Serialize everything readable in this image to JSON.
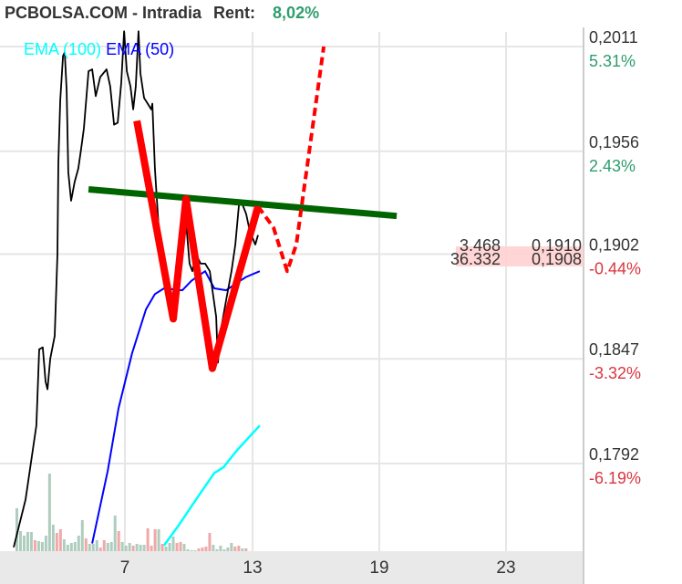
{
  "header": {
    "site": "PCBOLSA.COM - Intradia",
    "rent_label": "Rent:",
    "rent_value": "8,02%"
  },
  "legend": [
    {
      "name": "EMA (100)",
      "color": "#00ffff"
    },
    {
      "name": "EMA (50)",
      "color": "#0000ff"
    }
  ],
  "colors": {
    "price": "#000000",
    "ema100": "#00ffff",
    "ema50": "#0000ff",
    "pattern": "#ff0000",
    "trendline": "#006400",
    "vol_up": "#aecdbf",
    "vol_down": "#f0a8a8",
    "pct_up": "#2e9e6e",
    "pct_down": "#d9363e",
    "axis_band": "#e9e9e9"
  },
  "chart_data": {
    "type": "line",
    "title": "",
    "x_ticks": [
      7,
      13,
      19,
      23
    ],
    "ylim": [
      0.1748,
      0.2024
    ],
    "y_ticks": [
      {
        "price": "0,2011",
        "value": 0.2011,
        "pct": "5.31%",
        "dir": "up"
      },
      {
        "price": "0,1956",
        "value": 0.1956,
        "pct": "2.43%",
        "dir": "up"
      },
      {
        "price": "0,1902",
        "value": 0.1902,
        "pct": "-0.44%",
        "dir": "down"
      },
      {
        "price": "0,1847",
        "value": 0.1847,
        "pct": "-3.32%",
        "dir": "down"
      },
      {
        "price": "0,1792",
        "value": 0.1792,
        "pct": "-6.19%",
        "dir": "down"
      }
    ],
    "grid": true,
    "price": {
      "x": [
        1.77,
        2.33,
        2.84,
        2.97,
        3.14,
        3.27,
        3.36,
        3.49,
        3.7,
        3.83,
        3.87,
        3.96,
        4.09,
        4.17,
        4.26,
        4.34,
        4.47,
        4.64,
        4.81,
        4.94,
        5.07,
        5.29,
        5.46,
        5.63,
        5.84,
        6.14,
        6.31,
        6.49,
        6.66,
        6.83,
        6.96,
        7.09,
        7.26,
        7.39,
        7.51,
        7.64,
        7.73,
        7.9,
        8.07,
        8.24,
        8.29,
        8.41,
        8.5,
        8.67,
        8.93,
        9.23,
        9.36,
        9.61,
        9.87,
        10.04,
        10.17,
        10.34,
        10.56,
        10.77,
        10.99,
        11.29,
        11.37,
        11.54,
        11.76,
        12.01,
        12.19,
        12.36,
        12.53,
        12.7,
        12.87,
        13.13,
        13.26
      ],
      "y": [
        0.1748,
        0.1773,
        0.1812,
        0.1852,
        0.1853,
        0.1835,
        0.1831,
        0.1847,
        0.1859,
        0.1902,
        0.195,
        0.1983,
        0.2006,
        0.2008,
        0.1988,
        0.1945,
        0.193,
        0.194,
        0.1947,
        0.1957,
        0.1968,
        0.1998,
        0.1999,
        0.1985,
        0.1995,
        0.1999,
        0.199,
        0.197,
        0.1971,
        0.1992,
        0.2019,
        0.1998,
        0.199,
        0.1978,
        0.199,
        0.2019,
        0.1997,
        0.1984,
        0.1981,
        0.1978,
        0.1981,
        0.1947,
        0.1931,
        0.1902,
        0.1885,
        0.1869,
        0.1883,
        0.1893,
        0.1919,
        0.1897,
        0.1893,
        0.1902,
        0.1897,
        0.1897,
        0.1893,
        0.1869,
        0.1845,
        0.1864,
        0.1878,
        0.1893,
        0.1907,
        0.1928,
        0.1928,
        0.1923,
        0.1914,
        0.1907,
        0.1912
      ]
    },
    "ema50": {
      "x": [
        5.46,
        6.19,
        6.7,
        7.34,
        7.99,
        8.41,
        8.84,
        9.7,
        10.13,
        10.77,
        11.2,
        11.76,
        12.27,
        12.7,
        13.34
      ],
      "y": [
        0.175,
        0.1788,
        0.1821,
        0.185,
        0.1873,
        0.1881,
        0.1884,
        0.1883,
        0.1888,
        0.1893,
        0.1884,
        0.1883,
        0.1887,
        0.189,
        0.1893
      ]
    },
    "ema100": {
      "x": [
        8.84,
        9.49,
        10.34,
        11.2,
        11.63,
        12.27,
        13.34
      ],
      "y": [
        0.1749,
        0.1759,
        0.1773,
        0.1787,
        0.179,
        0.1799,
        0.1812
      ]
    },
    "pattern_solid": {
      "x": [
        7.56,
        9.27,
        9.87,
        11.11,
        13.26
      ],
      "y": [
        0.1972,
        0.1868,
        0.1931,
        0.1842,
        0.1927
      ]
    },
    "pattern_dashed": {
      "x": [
        13.26,
        13.99,
        14.64,
        15.07,
        16.37
      ],
      "y": [
        0.1927,
        0.1916,
        0.1893,
        0.1907,
        0.2011
      ]
    },
    "trendline": {
      "x": [
        5.29,
        19.55
      ],
      "y": [
        0.1936,
        0.1922
      ]
    },
    "volume": {
      "x_start": 1.92,
      "x_step": 0.171,
      "values": [
        47,
        22,
        17,
        21,
        21,
        12,
        11,
        10,
        17,
        85,
        29,
        20,
        24,
        13,
        7,
        9,
        10,
        17,
        34,
        14,
        8,
        8,
        12,
        4,
        12,
        9,
        10,
        39,
        22,
        10,
        6,
        9,
        6,
        8,
        7,
        7,
        25,
        6,
        24,
        24,
        8,
        5,
        9,
        16,
        9,
        10,
        8,
        2,
        1,
        1,
        3,
        4,
        5,
        20,
        7,
        2,
        6,
        2,
        4,
        9,
        5,
        6,
        3,
        3
      ],
      "dir": [
        "u",
        "u",
        "u",
        "u",
        "u",
        "d",
        "u",
        "u",
        "u",
        "u",
        "u",
        "d",
        "d",
        "u",
        "u",
        "u",
        "u",
        "u",
        "u",
        "d",
        "u",
        "u",
        "u",
        "d",
        "d",
        "u",
        "u",
        "u",
        "d",
        "u",
        "u",
        "u",
        "d",
        "u",
        "u",
        "u",
        "d",
        "d",
        "d",
        "u",
        "d",
        "u",
        "u",
        "u",
        "d",
        "d",
        "u",
        "u",
        "u",
        "u",
        "d",
        "d",
        "d",
        "d",
        "u",
        "u",
        "u",
        "u",
        "u",
        "u",
        "d",
        "d",
        "u",
        "d"
      ]
    },
    "cursor_labels": [
      {
        "volume": "3.468",
        "price": "0,1910"
      },
      {
        "volume": "36.332",
        "price": "0,1908"
      }
    ]
  }
}
